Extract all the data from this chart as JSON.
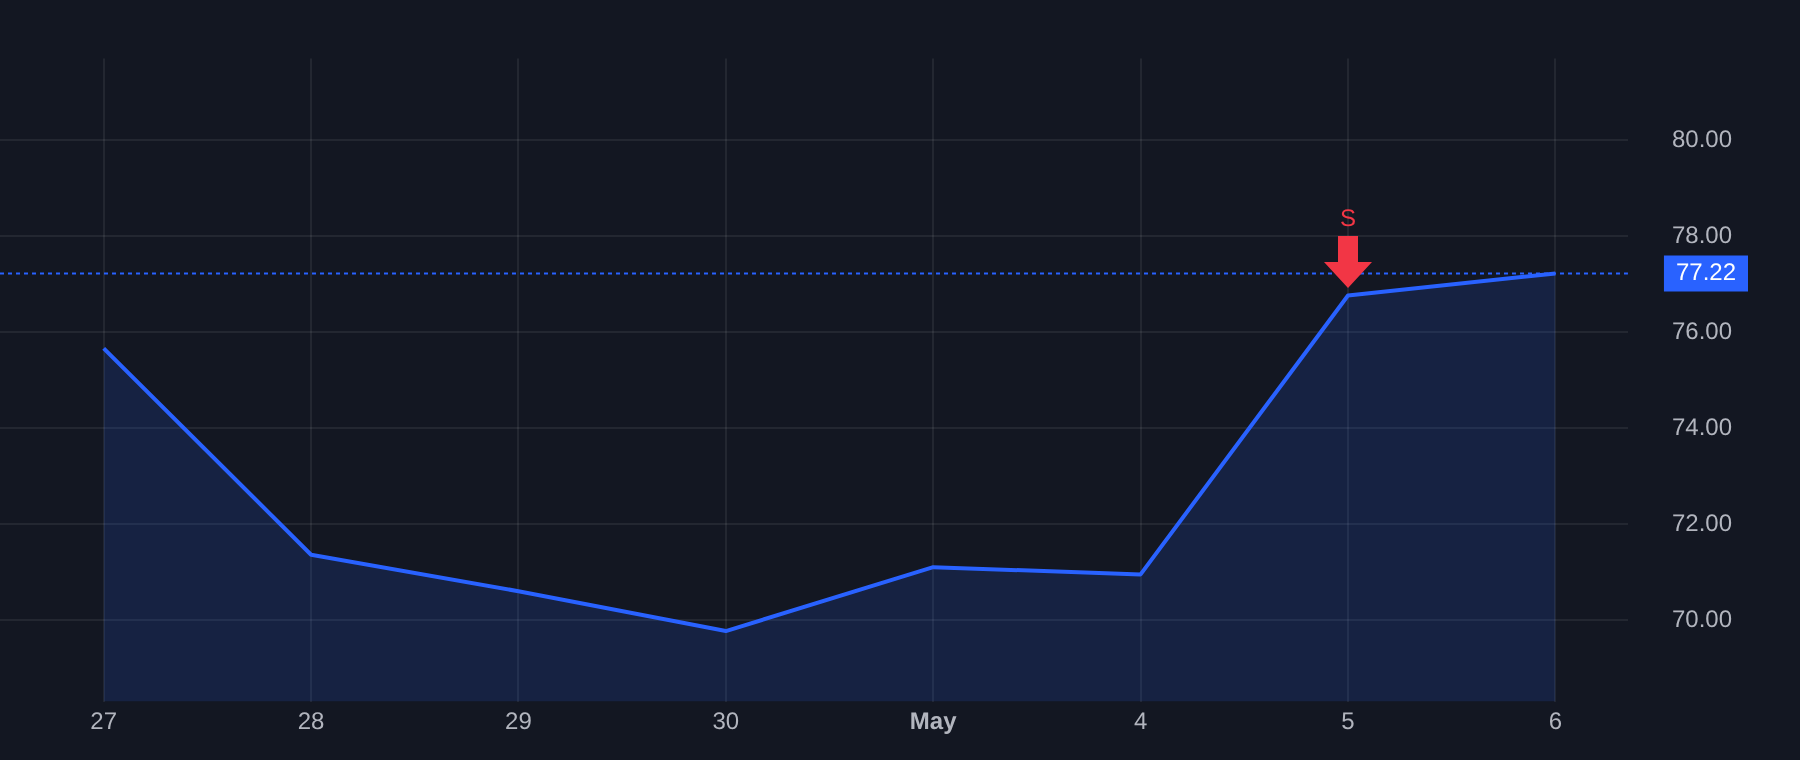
{
  "chart_data": {
    "type": "area",
    "categories": [
      "27",
      "28",
      "29",
      "30",
      "May",
      "4",
      "5",
      "6"
    ],
    "series": [
      {
        "color": "#2962ff",
        "values": [
          75.66,
          71.36,
          70.6,
          69.77,
          71.1,
          70.95,
          76.76,
          77.22
        ]
      }
    ],
    "ylim": [
      68.3,
      81.7
    ],
    "yticks": [
      {
        "value": 70,
        "label": "70.00"
      },
      {
        "value": 72,
        "label": "72.00"
      },
      {
        "value": 74,
        "label": "74.00"
      },
      {
        "value": 76,
        "label": "76.00"
      },
      {
        "value": 78,
        "label": "78.00"
      },
      {
        "value": 80,
        "label": "80.00"
      }
    ],
    "ref_lines": [
      {
        "axis": "y",
        "value": 77.22,
        "label": "77.22",
        "color": "#2962ff",
        "line_style": "dotted"
      }
    ],
    "annotations": [
      {
        "text": "S",
        "x": "5",
        "y": 76.76
      }
    ],
    "grid": true,
    "legend": false
  }
}
